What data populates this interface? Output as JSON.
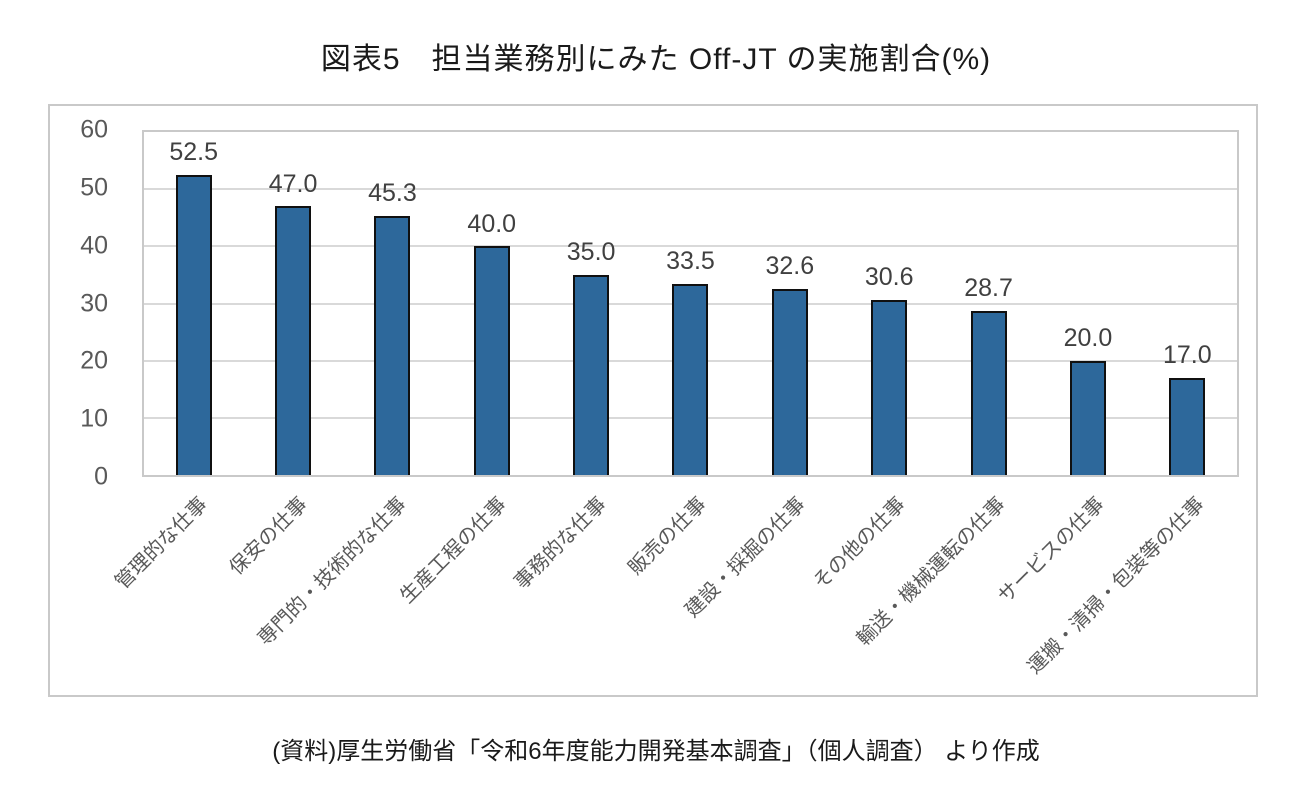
{
  "page": {
    "title": "図表5　担当業務別にみた Off-JT の実施割合(%)",
    "source_note": "(資料)厚生労働省「令和6年度能力開発基本調査」（個人調査） より作成"
  },
  "chart_data": {
    "type": "bar",
    "title": "図表5　担当業務別にみた Off-JT の実施割合(%)",
    "categories": [
      "管理的な仕事",
      "保安の仕事",
      "専門的・技術的な仕事",
      "生産工程の仕事",
      "事務的な仕事",
      "販売の仕事",
      "建設・採掘の仕事",
      "その他の仕事",
      "輸送・機械運転の仕事",
      "サービスの仕事",
      "運搬・清掃・包装等の仕事"
    ],
    "values": [
      52.5,
      47.0,
      45.3,
      40.0,
      35.0,
      33.5,
      32.6,
      30.6,
      28.7,
      20.0,
      17.0
    ],
    "value_labels": [
      "52.5",
      "47.0",
      "45.3",
      "40.0",
      "35.0",
      "33.5",
      "32.6",
      "30.6",
      "28.7",
      "20.0",
      "17.0"
    ],
    "xlabel": "",
    "ylabel": "",
    "ylim": [
      0,
      60
    ],
    "yticks": [
      0,
      10,
      20,
      30,
      40,
      50,
      60
    ],
    "grid": true,
    "legend_position": "none",
    "bar_color": "#2d689b",
    "bar_border_color": "#101010",
    "gridline_color": "#d9d9d9",
    "axis_border_color": "#c9c9c9",
    "tick_label_color": "#595959",
    "value_label_color": "#404040"
  }
}
